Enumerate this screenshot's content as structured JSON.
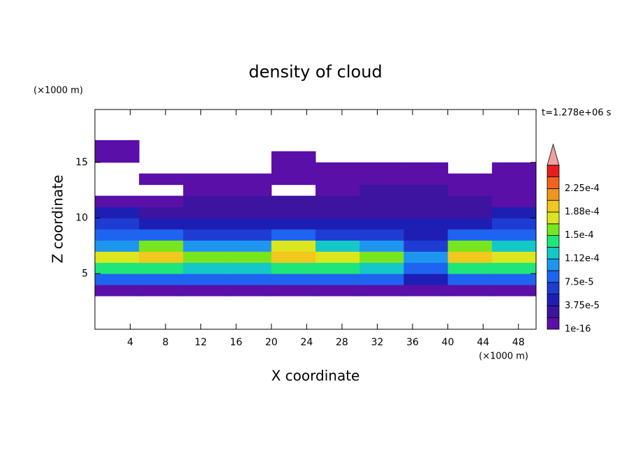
{
  "chart_data": {
    "type": "contour",
    "title": "density of cloud",
    "x_label": "X coordinate",
    "y_label": "Z coordinate",
    "x_unit": "(×1000 m)",
    "y_unit": "(×1000 m)",
    "time_label": "t=1.278e+06 s",
    "xlim": [
      0,
      50
    ],
    "ylim": [
      0,
      19.75
    ],
    "xticks": [
      4,
      8,
      12,
      16,
      20,
      24,
      28,
      32,
      36,
      40,
      44,
      48
    ],
    "yticks": [
      5,
      10,
      15
    ],
    "x": [
      2.5,
      7.5,
      12.5,
      17.5,
      22.5,
      27.5,
      32.5,
      37.5,
      42.5,
      47.5
    ],
    "y": [
      3.5,
      4.5,
      5.5,
      6.5,
      7.5,
      8.5,
      9.5,
      10.5,
      11.5,
      12.5,
      13.5,
      14.5,
      15.5,
      16.5
    ],
    "values": [
      [
        1e-05,
        1e-05,
        1e-05,
        1e-05,
        1e-05,
        1e-05,
        1e-05,
        1e-05,
        1e-05,
        1e-05
      ],
      [
        8e-05,
        8e-05,
        8e-05,
        8e-05,
        8e-05,
        8e-05,
        8e-05,
        5e-05,
        8e-05,
        8e-05
      ],
      [
        0.00014,
        0.00014,
        0.00013,
        0.00013,
        0.00014,
        0.000135,
        0.00013,
        8e-05,
        0.00014,
        0.00014
      ],
      [
        0.00017,
        0.00019,
        0.00016,
        0.00016,
        0.00019,
        0.00017,
        0.00016,
        0.0001,
        0.00019,
        0.00017
      ],
      [
        0.00011,
        0.00015,
        0.0001,
        0.00011,
        0.00017,
        0.00012,
        0.0001,
        6e-05,
        0.00015,
        0.00012
      ],
      [
        8e-05,
        8e-05,
        7e-05,
        7e-05,
        9e-05,
        7e-05,
        7e-05,
        5e-05,
        8e-05,
        8e-05
      ],
      [
        6e-05,
        5e-05,
        5e-05,
        5e-05,
        5e-05,
        5e-05,
        5e-05,
        4e-05,
        5e-05,
        6e-05
      ],
      [
        4e-05,
        3e-05,
        3e-05,
        3e-05,
        3e-05,
        3e-05,
        3e-05,
        3e-05,
        3e-05,
        4e-05
      ],
      [
        1.5e-05,
        1e-05,
        2e-05,
        2e-05,
        2e-05,
        2.5e-05,
        2.5e-05,
        2.5e-05,
        2e-05,
        1.5e-05
      ],
      [
        null,
        null,
        1e-05,
        1e-05,
        null,
        1e-05,
        2e-05,
        2e-05,
        1e-05,
        1e-05
      ],
      [
        null,
        1e-05,
        1e-05,
        1e-05,
        1e-05,
        1e-05,
        1e-05,
        1e-05,
        1e-05,
        1e-05
      ],
      [
        null,
        null,
        null,
        null,
        1e-05,
        1e-05,
        1e-05,
        1e-05,
        null,
        1e-05
      ],
      [
        1e-05,
        null,
        null,
        null,
        1e-05,
        null,
        null,
        null,
        null,
        null
      ],
      [
        1e-05,
        null,
        null,
        null,
        null,
        null,
        null,
        null,
        null,
        null
      ]
    ],
    "levels": [
      1e-16,
      1.875e-05,
      3.75e-05,
      5.625e-05,
      7.5e-05,
      9.375e-05,
      0.0001125,
      0.00013125,
      0.00015,
      0.00016875,
      0.0001875,
      0.00020625,
      0.000225,
      0.00024375
    ],
    "level_colors": [
      "#5a0fa8",
      "#3c14a0",
      "#1e1eb4",
      "#1e3cd2",
      "#1e64f0",
      "#1e96f0",
      "#14c8c8",
      "#1ee678",
      "#78e61e",
      "#dce61e",
      "#f0c81e",
      "#f0961e",
      "#f0641e",
      "#e61e1e"
    ],
    "overflow_color": "#f0a0a0",
    "colorbar_ticks": [
      {
        "value": 1e-16,
        "label": "1e-16"
      },
      {
        "value": 3.75e-05,
        "label": "3.75e-5"
      },
      {
        "value": 7.5e-05,
        "label": "7.5e-5"
      },
      {
        "value": 0.0001125,
        "label": "1.12e-4"
      },
      {
        "value": 0.00015,
        "label": "1.5e-4"
      },
      {
        "value": 0.0001875,
        "label": "1.88e-4"
      },
      {
        "value": 0.000225,
        "label": "2.25e-4"
      }
    ]
  }
}
